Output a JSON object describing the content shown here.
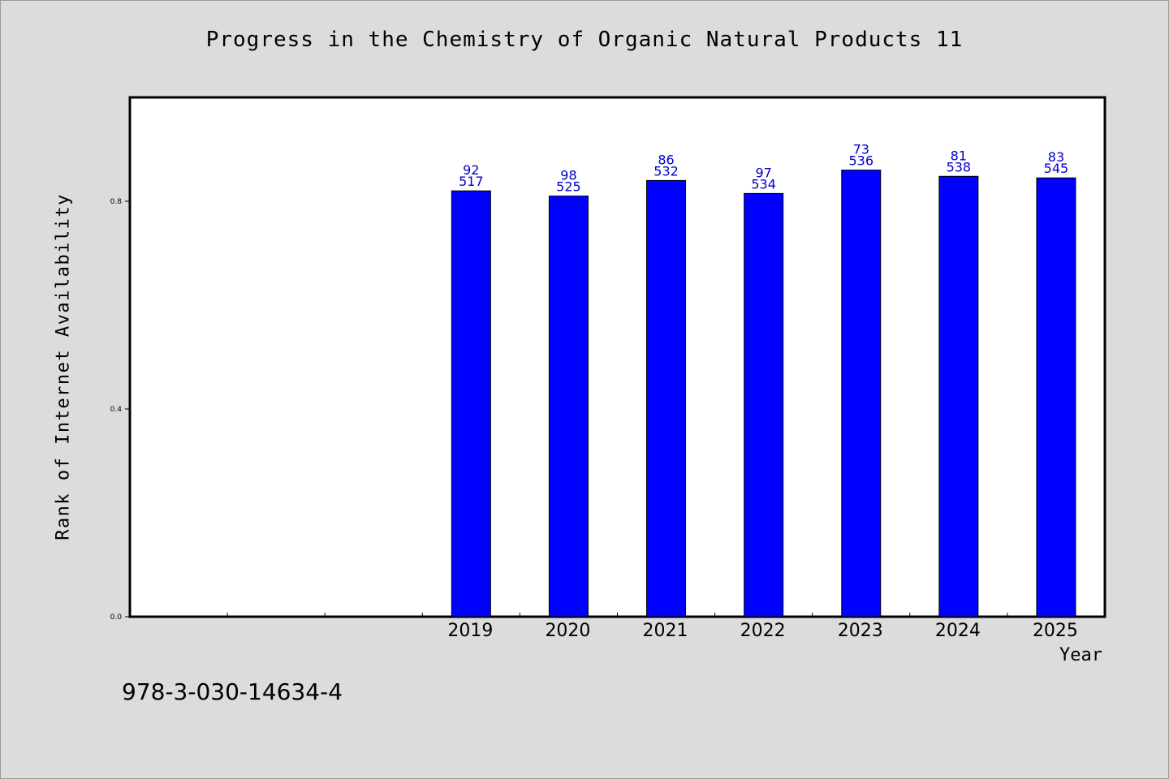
{
  "chart_data": {
    "type": "bar",
    "title": "Progress in the Chemistry of Organic Natural Products 11",
    "xlabel": "Year",
    "ylabel": "Rank of Internet Availability",
    "categories": [
      "",
      "",
      "",
      "2019",
      "2020",
      "2021",
      "2022",
      "2023",
      "2024",
      "2025"
    ],
    "values": [
      null,
      null,
      null,
      0.82,
      0.81,
      0.84,
      0.815,
      0.86,
      0.848,
      0.845
    ],
    "label_top": [
      "",
      "",
      "",
      "92",
      "98",
      "86",
      "97",
      "73",
      "81",
      "83"
    ],
    "label_bottom": [
      "",
      "",
      "",
      "517",
      "525",
      "532",
      "534",
      "536",
      "538",
      "545"
    ],
    "ylim": [
      0,
      1.0
    ],
    "yticks": [
      0.0,
      0.4,
      0.8
    ],
    "ytick_labels": [
      "0.0",
      "0.4",
      "0.8"
    ],
    "grid": false,
    "bar_color": "#0000ff",
    "label_color": "#0000cc"
  },
  "footer": {
    "isbn": "978-3-030-14634-4"
  }
}
